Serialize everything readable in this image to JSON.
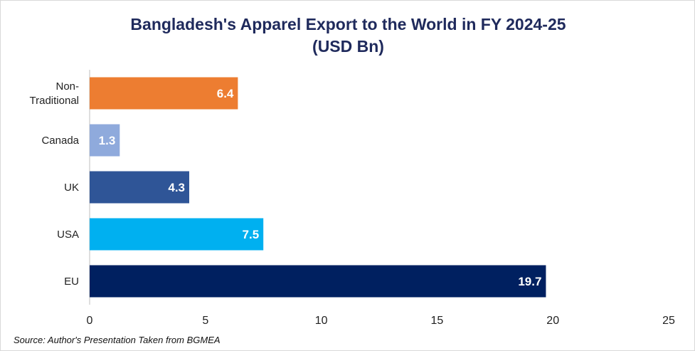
{
  "chart_data": {
    "type": "bar",
    "orientation": "horizontal",
    "title_line1": "Bangladesh's Apparel Export to the World in FY 2024-25",
    "title_line2": "(USD Bn)",
    "categories": [
      "Non-Traditional",
      "Canada",
      "UK",
      "USA",
      "EU"
    ],
    "category_lines": [
      [
        "Non-",
        "Traditional"
      ],
      [
        "Canada"
      ],
      [
        "UK"
      ],
      [
        "USA"
      ],
      [
        "EU"
      ]
    ],
    "values": [
      6.4,
      1.3,
      4.3,
      7.5,
      19.7
    ],
    "value_labels": [
      "6.4",
      "1.3",
      "4.3",
      "7.5",
      "19.7"
    ],
    "colors": [
      "#ed7d31",
      "#8faadc",
      "#2f5597",
      "#00b0f0",
      "#002060"
    ],
    "xlim": [
      0,
      25
    ],
    "x_ticks": [
      0,
      5,
      10,
      15,
      20,
      25
    ],
    "x_tick_labels": [
      "0",
      "5",
      "10",
      "15",
      "20",
      "25"
    ],
    "grid": false,
    "legend": "none",
    "source": "Source: Author's Presentation Taken from BGMEA"
  }
}
